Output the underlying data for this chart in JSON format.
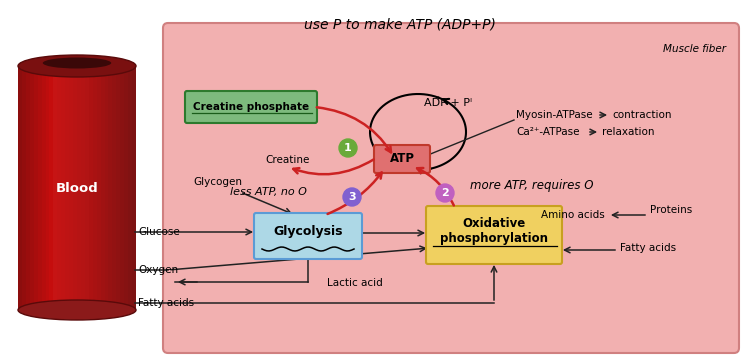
{
  "muscle_fiber_bg": "#f2b0b0",
  "muscle_fiber_edge": "#d08080",
  "title_handwritten": "use P to make ATP (ADP+P)",
  "muscle_fiber_label": "Muscle fiber",
  "blood_label": "Blood",
  "creatine_phosphate_box_color": "#7dba7d",
  "creatine_phosphate_box_border": "#2d7a2d",
  "creatine_phosphate_text": "Creatine phosphate",
  "glycolysis_box_color": "#add8e6",
  "glycolysis_box_border": "#5b9bd5",
  "glycolysis_text": "Glycolysis",
  "atp_box_color": "#e07070",
  "atp_box_border": "#c0392b",
  "atp_text": "ATP",
  "ox_phos_box_color": "#f0d060",
  "ox_phos_box_border": "#c8a020",
  "ox_phos_text": "Oxidative\nphosphorylation",
  "adp_pi_text": "ADP + Pᴵ",
  "creatine_text": "Creatine",
  "glycogen_text": "Glycogen",
  "glucose_text": "Glucose",
  "oxygen_text": "Oxygen",
  "fatty_acids_left_text": "Fatty acids",
  "lactic_acid_text": "Lactic acid",
  "amino_acids_text": "Amino acids",
  "proteins_text": "Proteins",
  "fatty_acids_right_text": "Fatty acids",
  "myosin_text": "Myosin-ATPase",
  "contraction_text": "contraction",
  "ca_text": "Ca²⁺-ATPase",
  "relaxation_text": "relaxation",
  "annotation1": "less ATP, no O",
  "annotation2": "more ATP, requires O",
  "circle1_color": "#6aaa3a",
  "circle2_color": "#c060c0",
  "circle3_color": "#8060d0",
  "arrow_red": "#cc2222",
  "arrow_black": "#222222"
}
